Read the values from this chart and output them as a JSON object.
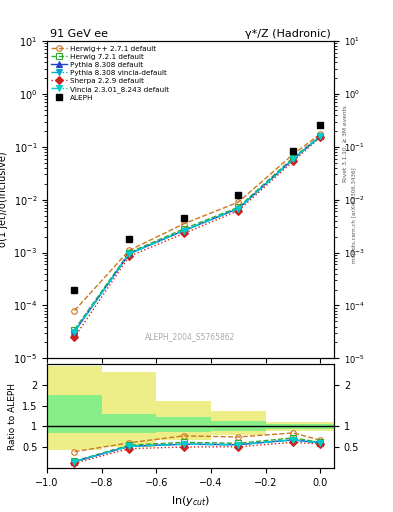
{
  "title_left": "91 GeV ee",
  "title_right": "γ*/Z (Hadronic)",
  "ylabel_main": "σ(1 jet)/σ(inclusive)",
  "ylabel_ratio": "Ratio to ALEPH",
  "xlabel": "ln(y_{cut})",
  "watermark": "ALEPH_2004_S5765862",
  "right_label1": "Rivet 3.1.10, ≥ 3M events",
  "right_label2": "mcplots.cern.ch [arXiv:1306.3436]",
  "xlim": [
    -1.0,
    0.05
  ],
  "ylim_main": [
    1e-05,
    10
  ],
  "ylim_ratio": [
    0.0,
    2.5
  ],
  "aleph_x": [
    -0.9,
    -0.7,
    -0.5,
    -0.3,
    -0.1,
    0.0
  ],
  "aleph_y": [
    0.0002,
    0.0018,
    0.0045,
    0.012,
    0.085,
    0.26
  ],
  "herwig_pp_x": [
    -0.9,
    -0.7,
    -0.5,
    -0.3,
    -0.1,
    0.0
  ],
  "herwig_pp_y": [
    8e-05,
    0.0011,
    0.0035,
    0.009,
    0.072,
    0.175
  ],
  "herwig72_x": [
    -0.9,
    -0.7,
    -0.5,
    -0.3,
    -0.1,
    0.0
  ],
  "herwig72_y": [
    3.5e-05,
    0.001,
    0.0028,
    0.0072,
    0.062,
    0.162
  ],
  "pythia_x": [
    -0.9,
    -0.7,
    -0.5,
    -0.3,
    -0.1,
    0.0
  ],
  "pythia_y": [
    3.2e-05,
    0.00095,
    0.0026,
    0.0068,
    0.058,
    0.158
  ],
  "pythia_vincia_x": [
    -0.9,
    -0.7,
    -0.5,
    -0.3,
    -0.1,
    0.0
  ],
  "pythia_vincia_y": [
    3.2e-05,
    0.00095,
    0.0026,
    0.0068,
    0.058,
    0.158
  ],
  "sherpa_x": [
    -0.9,
    -0.7,
    -0.5,
    -0.3,
    -0.1,
    0.0
  ],
  "sherpa_y": [
    2.5e-05,
    0.00085,
    0.0023,
    0.0062,
    0.053,
    0.152
  ],
  "vincia_x": [
    -0.9,
    -0.7,
    -0.5,
    -0.3,
    -0.1,
    0.0
  ],
  "vincia_y": [
    3.2e-05,
    0.00095,
    0.0026,
    0.0068,
    0.058,
    0.158
  ],
  "ratio_band_edges": [
    -1.0,
    -0.8,
    -0.6,
    -0.4,
    -0.2,
    0.05
  ],
  "ratio_green_lo": [
    0.85,
    0.85,
    0.87,
    0.9,
    0.95,
    0.95
  ],
  "ratio_green_hi": [
    1.75,
    1.3,
    1.22,
    1.12,
    1.05,
    1.05
  ],
  "ratio_yellow_lo": [
    0.45,
    0.5,
    0.68,
    0.8,
    0.9,
    0.9
  ],
  "ratio_yellow_hi": [
    2.45,
    2.3,
    1.6,
    1.38,
    1.1,
    1.1
  ],
  "colors": {
    "herwig_pp": "#cc7722",
    "herwig72": "#33aa33",
    "pythia": "#2244cc",
    "pythia_vincia": "#00aacc",
    "sherpa": "#cc2222",
    "vincia": "#00cccc"
  }
}
